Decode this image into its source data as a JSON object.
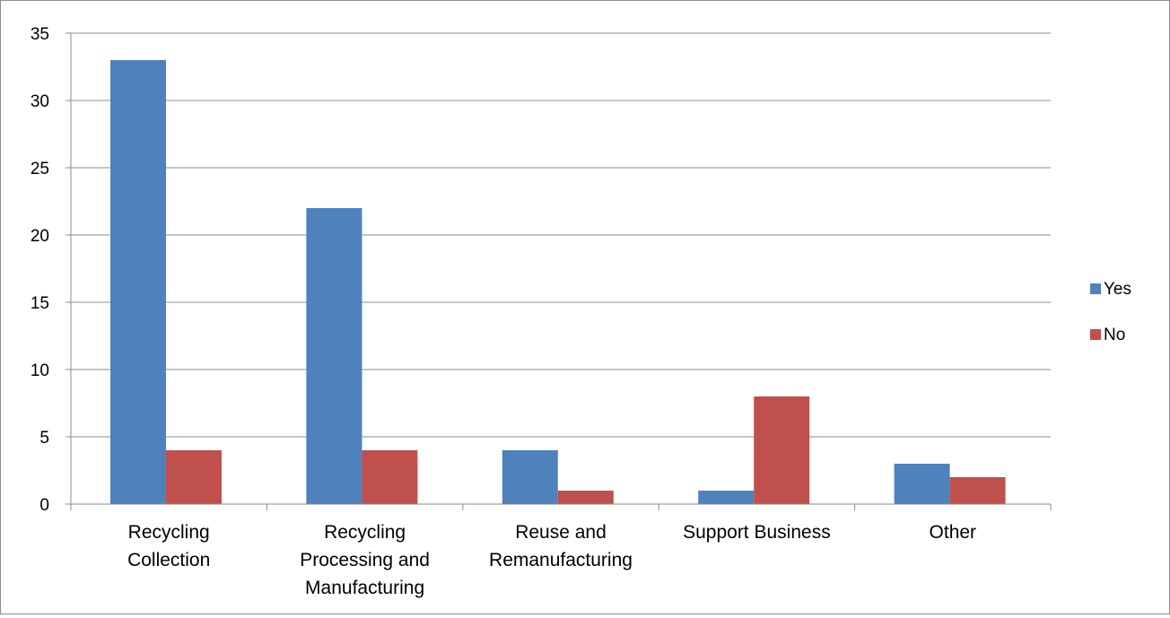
{
  "chart_data": {
    "type": "bar",
    "title": "",
    "xlabel": "",
    "ylabel": "",
    "categories": [
      [
        "Recycling",
        "Collection"
      ],
      [
        "Recycling",
        "Processing and",
        "Manufacturing"
      ],
      [
        "Reuse and",
        "Remanufacturing"
      ],
      [
        "Support Business"
      ],
      [
        "Other"
      ]
    ],
    "series": [
      {
        "name": "Yes",
        "color": "#4f81bd",
        "values": [
          33,
          22,
          4,
          1,
          3
        ]
      },
      {
        "name": "No",
        "color": "#c0504d",
        "values": [
          4,
          4,
          1,
          8,
          2
        ]
      }
    ],
    "ylim": [
      0,
      35
    ],
    "yticks": [
      0,
      5,
      10,
      15,
      20,
      25,
      30,
      35
    ],
    "grid": true,
    "legend_position": "right"
  }
}
